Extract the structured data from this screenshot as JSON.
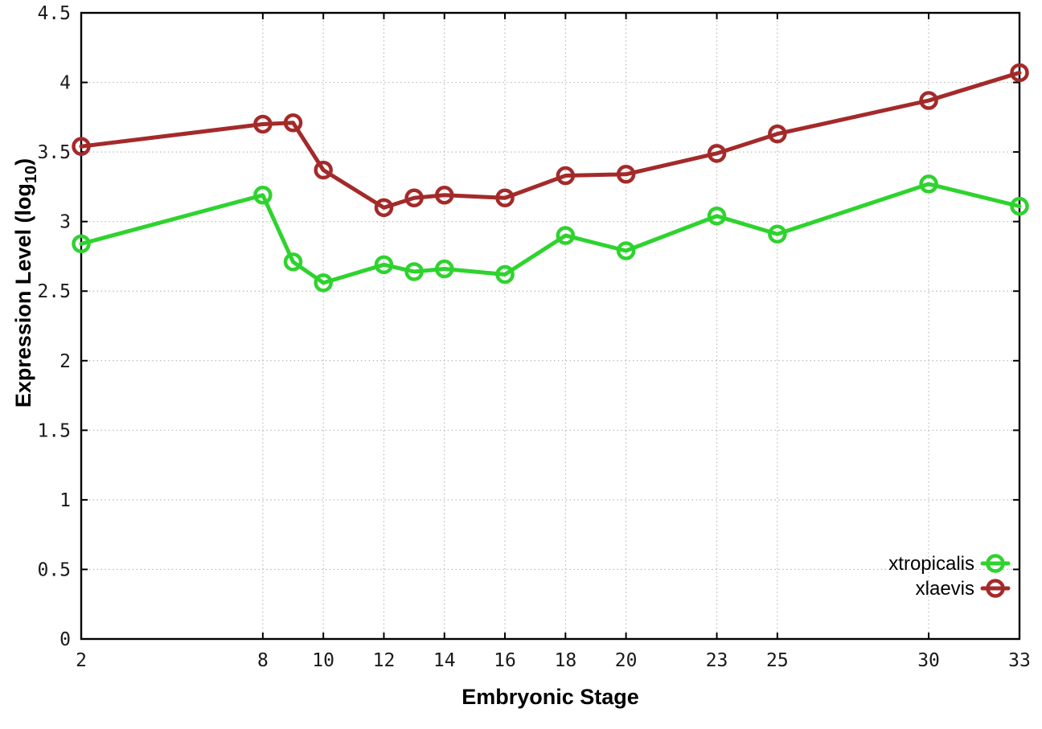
{
  "chart_data": {
    "type": "line",
    "title": "",
    "xlabel": "Embryonic Stage",
    "ylabel": "Expression Level (log10)",
    "ylabel_parts": {
      "pre": "Expression Level (log",
      "sub": "10",
      "post": ")"
    },
    "xlim": [
      2,
      33
    ],
    "ylim": [
      0,
      4.5
    ],
    "grid": true,
    "legend_position": "bottom-right",
    "x": [
      2,
      8,
      9,
      10,
      12,
      13,
      14,
      16,
      18,
      20,
      23,
      25,
      30,
      33
    ],
    "series": [
      {
        "name": "xtropicalis",
        "color": "#2ed32e",
        "values": [
          2.84,
          3.19,
          2.71,
          2.56,
          2.69,
          2.64,
          2.66,
          2.62,
          2.9,
          2.79,
          3.04,
          2.91,
          3.27,
          3.11
        ]
      },
      {
        "name": "xlaevis",
        "color": "#a42a2a",
        "values": [
          3.54,
          3.7,
          3.71,
          3.37,
          3.1,
          3.17,
          3.19,
          3.17,
          3.33,
          3.34,
          3.49,
          3.63,
          3.87,
          4.07
        ]
      }
    ],
    "xticks": [
      2,
      8,
      10,
      12,
      14,
      16,
      18,
      20,
      23,
      25,
      30,
      33
    ],
    "xtick_labels": [
      "2",
      "8",
      "10",
      "12",
      "14",
      "16",
      "18",
      "20",
      "23",
      "25",
      "30",
      "33"
    ],
    "yticks": [
      0,
      0.5,
      1,
      1.5,
      2,
      2.5,
      3,
      3.5,
      4,
      4.5
    ],
    "ytick_labels": [
      "0",
      "0.5",
      "1",
      "1.5",
      "2",
      "2.5",
      "3",
      "3.5",
      "4",
      "4.5"
    ],
    "colors": {
      "background": "#ffffff",
      "grid": "#b8b8b8",
      "axis": "#000000",
      "tick_text": "#1a1a1a"
    }
  }
}
